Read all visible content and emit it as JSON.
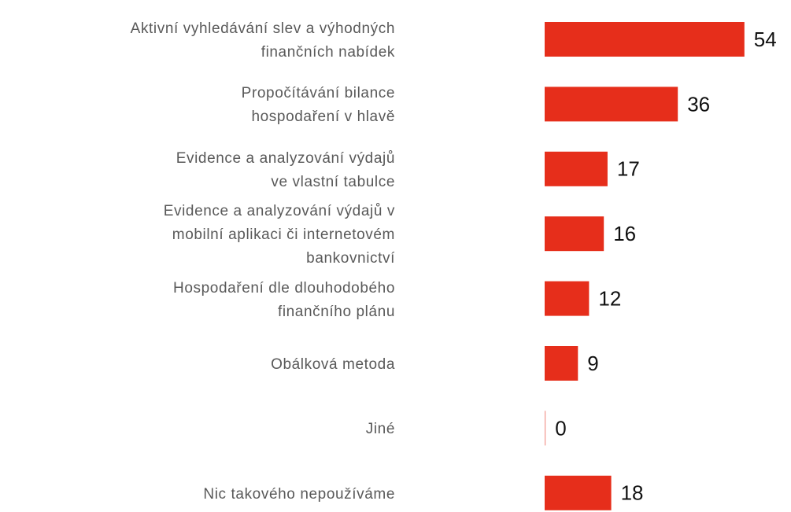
{
  "chart_data": {
    "type": "bar",
    "orientation": "horizontal",
    "categories": [
      "Aktivní vyhledávání slev a výhodných\nfinančních nabídek",
      "Propočítávání bilance\nhospodaření v hlavě",
      "Evidence a analyzování výdajů\nve vlastní tabulce",
      "Evidence a analyzování výdajů v\nmobilní aplikaci či internetovém\nbankovnictví",
      "Hospodaření dle dlouhodobého\nfinančního plánu",
      "Obálková metoda",
      "Jiné",
      "Nic takového nepoužíváme"
    ],
    "values": [
      54,
      36,
      17,
      16,
      12,
      9,
      0,
      18
    ],
    "color": "#e62e1b"
  }
}
